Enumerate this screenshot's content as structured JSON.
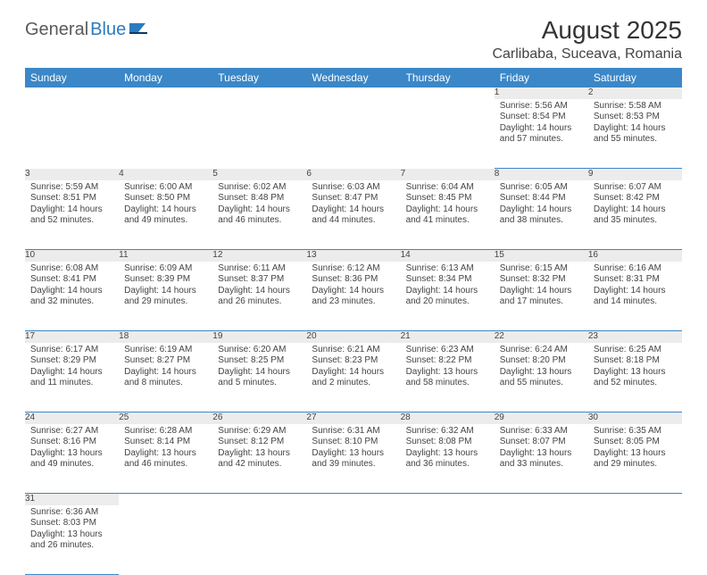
{
  "logo": {
    "part1": "General",
    "part2": "Blue"
  },
  "title": "August 2025",
  "location": "Carlibaba, Suceava, Romania",
  "colors": {
    "header_bg": "#3b87c8",
    "header_fg": "#ffffff",
    "daynum_bg": "#ececec",
    "row_border": "#3b87c8",
    "logo_gray": "#5a5a5a",
    "logo_blue": "#2b7bbf"
  },
  "weekdays": [
    "Sunday",
    "Monday",
    "Tuesday",
    "Wednesday",
    "Thursday",
    "Friday",
    "Saturday"
  ],
  "weeks": [
    [
      null,
      null,
      null,
      null,
      null,
      {
        "d": "1",
        "sr": "Sunrise: 5:56 AM",
        "ss": "Sunset: 8:54 PM",
        "dl": "Daylight: 14 hours and 57 minutes."
      },
      {
        "d": "2",
        "sr": "Sunrise: 5:58 AM",
        "ss": "Sunset: 8:53 PM",
        "dl": "Daylight: 14 hours and 55 minutes."
      }
    ],
    [
      {
        "d": "3",
        "sr": "Sunrise: 5:59 AM",
        "ss": "Sunset: 8:51 PM",
        "dl": "Daylight: 14 hours and 52 minutes."
      },
      {
        "d": "4",
        "sr": "Sunrise: 6:00 AM",
        "ss": "Sunset: 8:50 PM",
        "dl": "Daylight: 14 hours and 49 minutes."
      },
      {
        "d": "5",
        "sr": "Sunrise: 6:02 AM",
        "ss": "Sunset: 8:48 PM",
        "dl": "Daylight: 14 hours and 46 minutes."
      },
      {
        "d": "6",
        "sr": "Sunrise: 6:03 AM",
        "ss": "Sunset: 8:47 PM",
        "dl": "Daylight: 14 hours and 44 minutes."
      },
      {
        "d": "7",
        "sr": "Sunrise: 6:04 AM",
        "ss": "Sunset: 8:45 PM",
        "dl": "Daylight: 14 hours and 41 minutes."
      },
      {
        "d": "8",
        "sr": "Sunrise: 6:05 AM",
        "ss": "Sunset: 8:44 PM",
        "dl": "Daylight: 14 hours and 38 minutes."
      },
      {
        "d": "9",
        "sr": "Sunrise: 6:07 AM",
        "ss": "Sunset: 8:42 PM",
        "dl": "Daylight: 14 hours and 35 minutes."
      }
    ],
    [
      {
        "d": "10",
        "sr": "Sunrise: 6:08 AM",
        "ss": "Sunset: 8:41 PM",
        "dl": "Daylight: 14 hours and 32 minutes."
      },
      {
        "d": "11",
        "sr": "Sunrise: 6:09 AM",
        "ss": "Sunset: 8:39 PM",
        "dl": "Daylight: 14 hours and 29 minutes."
      },
      {
        "d": "12",
        "sr": "Sunrise: 6:11 AM",
        "ss": "Sunset: 8:37 PM",
        "dl": "Daylight: 14 hours and 26 minutes."
      },
      {
        "d": "13",
        "sr": "Sunrise: 6:12 AM",
        "ss": "Sunset: 8:36 PM",
        "dl": "Daylight: 14 hours and 23 minutes."
      },
      {
        "d": "14",
        "sr": "Sunrise: 6:13 AM",
        "ss": "Sunset: 8:34 PM",
        "dl": "Daylight: 14 hours and 20 minutes."
      },
      {
        "d": "15",
        "sr": "Sunrise: 6:15 AM",
        "ss": "Sunset: 8:32 PM",
        "dl": "Daylight: 14 hours and 17 minutes."
      },
      {
        "d": "16",
        "sr": "Sunrise: 6:16 AM",
        "ss": "Sunset: 8:31 PM",
        "dl": "Daylight: 14 hours and 14 minutes."
      }
    ],
    [
      {
        "d": "17",
        "sr": "Sunrise: 6:17 AM",
        "ss": "Sunset: 8:29 PM",
        "dl": "Daylight: 14 hours and 11 minutes."
      },
      {
        "d": "18",
        "sr": "Sunrise: 6:19 AM",
        "ss": "Sunset: 8:27 PM",
        "dl": "Daylight: 14 hours and 8 minutes."
      },
      {
        "d": "19",
        "sr": "Sunrise: 6:20 AM",
        "ss": "Sunset: 8:25 PM",
        "dl": "Daylight: 14 hours and 5 minutes."
      },
      {
        "d": "20",
        "sr": "Sunrise: 6:21 AM",
        "ss": "Sunset: 8:23 PM",
        "dl": "Daylight: 14 hours and 2 minutes."
      },
      {
        "d": "21",
        "sr": "Sunrise: 6:23 AM",
        "ss": "Sunset: 8:22 PM",
        "dl": "Daylight: 13 hours and 58 minutes."
      },
      {
        "d": "22",
        "sr": "Sunrise: 6:24 AM",
        "ss": "Sunset: 8:20 PM",
        "dl": "Daylight: 13 hours and 55 minutes."
      },
      {
        "d": "23",
        "sr": "Sunrise: 6:25 AM",
        "ss": "Sunset: 8:18 PM",
        "dl": "Daylight: 13 hours and 52 minutes."
      }
    ],
    [
      {
        "d": "24",
        "sr": "Sunrise: 6:27 AM",
        "ss": "Sunset: 8:16 PM",
        "dl": "Daylight: 13 hours and 49 minutes."
      },
      {
        "d": "25",
        "sr": "Sunrise: 6:28 AM",
        "ss": "Sunset: 8:14 PM",
        "dl": "Daylight: 13 hours and 46 minutes."
      },
      {
        "d": "26",
        "sr": "Sunrise: 6:29 AM",
        "ss": "Sunset: 8:12 PM",
        "dl": "Daylight: 13 hours and 42 minutes."
      },
      {
        "d": "27",
        "sr": "Sunrise: 6:31 AM",
        "ss": "Sunset: 8:10 PM",
        "dl": "Daylight: 13 hours and 39 minutes."
      },
      {
        "d": "28",
        "sr": "Sunrise: 6:32 AM",
        "ss": "Sunset: 8:08 PM",
        "dl": "Daylight: 13 hours and 36 minutes."
      },
      {
        "d": "29",
        "sr": "Sunrise: 6:33 AM",
        "ss": "Sunset: 8:07 PM",
        "dl": "Daylight: 13 hours and 33 minutes."
      },
      {
        "d": "30",
        "sr": "Sunrise: 6:35 AM",
        "ss": "Sunset: 8:05 PM",
        "dl": "Daylight: 13 hours and 29 minutes."
      }
    ],
    [
      {
        "d": "31",
        "sr": "Sunrise: 6:36 AM",
        "ss": "Sunset: 8:03 PM",
        "dl": "Daylight: 13 hours and 26 minutes."
      },
      null,
      null,
      null,
      null,
      null,
      null
    ]
  ]
}
